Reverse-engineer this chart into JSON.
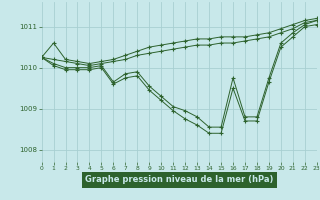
{
  "title": "Graphe pression niveau de la mer (hPa)",
  "background_color": "#c8e8ea",
  "grid_color": "#a8cfd2",
  "line_color": "#2d622d",
  "xlim": [
    0,
    23
  ],
  "ylim": [
    1007.7,
    1011.6
  ],
  "yticks": [
    1008,
    1009,
    1010,
    1011
  ],
  "xticks": [
    0,
    1,
    2,
    3,
    4,
    5,
    6,
    7,
    8,
    9,
    10,
    11,
    12,
    13,
    14,
    15,
    16,
    17,
    18,
    19,
    20,
    21,
    22,
    23
  ],
  "xlabel_bg": "#2d622d",
  "xlabel_fg": "#c8e8ea",
  "series": [
    [
      1010.25,
      1010.6,
      1010.2,
      1010.15,
      1010.1,
      1010.15,
      1010.2,
      1010.3,
      1010.4,
      1010.5,
      1010.55,
      1010.6,
      1010.65,
      1010.7,
      1010.7,
      1010.75,
      1010.75,
      1010.75,
      1010.8,
      1010.85,
      1010.95,
      1011.05,
      1011.15,
      1011.2
    ],
    [
      1010.25,
      1010.2,
      1010.15,
      1010.1,
      1010.05,
      1010.1,
      1010.15,
      1010.2,
      1010.3,
      1010.35,
      1010.4,
      1010.45,
      1010.5,
      1010.55,
      1010.55,
      1010.6,
      1010.6,
      1010.65,
      1010.7,
      1010.75,
      1010.85,
      1010.95,
      1011.1,
      1011.15
    ],
    [
      1010.25,
      1010.1,
      1010.0,
      1010.0,
      1010.0,
      1010.05,
      1009.65,
      1009.85,
      1009.9,
      1009.55,
      1009.3,
      1009.05,
      1008.95,
      1008.8,
      1008.55,
      1008.55,
      1009.75,
      1008.8,
      1008.8,
      1009.75,
      1010.6,
      1010.85,
      1011.05,
      1011.15
    ],
    [
      1010.25,
      1010.05,
      1009.95,
      1009.95,
      1009.95,
      1010.0,
      1009.6,
      1009.75,
      1009.8,
      1009.45,
      1009.2,
      1008.95,
      1008.75,
      1008.6,
      1008.4,
      1008.4,
      1009.5,
      1008.7,
      1008.7,
      1009.65,
      1010.5,
      1010.75,
      1011.0,
      1011.05
    ]
  ]
}
